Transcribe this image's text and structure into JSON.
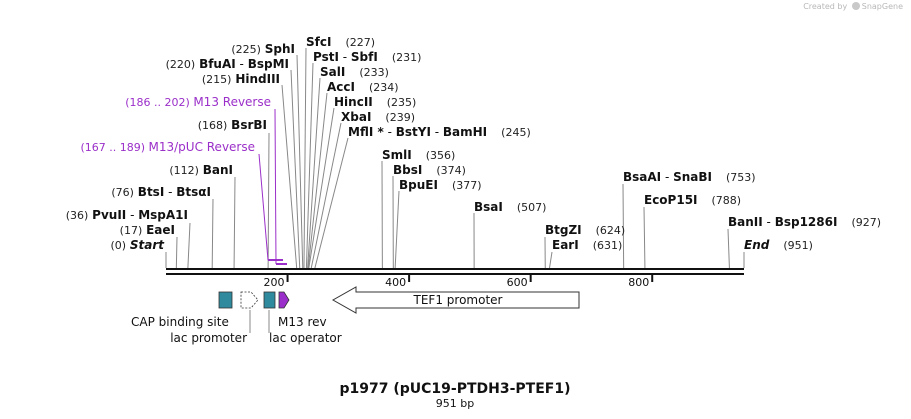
{
  "creator": {
    "text": "Created by",
    "brand": "SnapGene"
  },
  "title": "p1977 (pUC19-PTDH3-PTEF1)",
  "length_label": "951 bp",
  "ticks": [
    "200",
    "400",
    "600",
    "800"
  ],
  "sites": [
    {
      "pos": "(0)",
      "names": [
        "Start"
      ],
      "italic": true
    },
    {
      "pos": "(17)",
      "names": [
        "EaeI"
      ]
    },
    {
      "pos": "(36)",
      "names": [
        "PvuII",
        "MspA1I"
      ]
    },
    {
      "pos": "(76)",
      "names": [
        "BtsI",
        "BtsαI"
      ]
    },
    {
      "pos": "(112)",
      "names": [
        "BanI"
      ]
    },
    {
      "pos": "(168)",
      "names": [
        "BsrBI"
      ]
    },
    {
      "pos": "(215)",
      "names": [
        "HindIII"
      ]
    },
    {
      "pos": "(220)",
      "names": [
        "BfuAI",
        "BspMI"
      ]
    },
    {
      "pos": "(225)",
      "names": [
        "SphI"
      ]
    },
    {
      "pos": "(227)",
      "names": [
        "SfcI"
      ]
    },
    {
      "pos": "(231)",
      "names": [
        "PstI",
        "SbfI"
      ]
    },
    {
      "pos": "(233)",
      "names": [
        "SalI"
      ]
    },
    {
      "pos": "(234)",
      "names": [
        "AccI"
      ]
    },
    {
      "pos": "(235)",
      "names": [
        "HincII"
      ]
    },
    {
      "pos": "(239)",
      "names": [
        "XbaI"
      ]
    },
    {
      "pos": "(245)",
      "names": [
        "MflI *",
        "BstYI",
        "BamHI"
      ]
    },
    {
      "pos": "(356)",
      "names": [
        "SmlI"
      ]
    },
    {
      "pos": "(374)",
      "names": [
        "BbsI"
      ]
    },
    {
      "pos": "(377)",
      "names": [
        "BpuEI"
      ]
    },
    {
      "pos": "(507)",
      "names": [
        "BsaI"
      ]
    },
    {
      "pos": "(624)",
      "names": [
        "BtgZI"
      ]
    },
    {
      "pos": "(631)",
      "names": [
        "EarI"
      ]
    },
    {
      "pos": "(753)",
      "names": [
        "BsaAI",
        "SnaBI"
      ]
    },
    {
      "pos": "(788)",
      "names": [
        "EcoP15I"
      ]
    },
    {
      "pos": "(927)",
      "names": [
        "BanII",
        "Bsp1286I"
      ]
    },
    {
      "pos": "(951)",
      "names": [
        "End"
      ],
      "italic": true
    }
  ],
  "primers": [
    {
      "range": "(186 .. 202)",
      "name": "M13 Reverse"
    },
    {
      "range": "(167 .. 189)",
      "name": "M13/pUC Reverse"
    }
  ],
  "features": [
    {
      "name": "CAP binding site"
    },
    {
      "name": "lac promoter"
    },
    {
      "name": "lac operator"
    },
    {
      "name": "M13 rev"
    },
    {
      "name": "TEF1 promoter"
    }
  ],
  "colors": {
    "primer": "#9b2fc9",
    "cap_site": "#2e8a9c",
    "lac_operator": "#2e8a9c",
    "m13_rev": "#9b2fc9",
    "backbone": "#111111"
  }
}
